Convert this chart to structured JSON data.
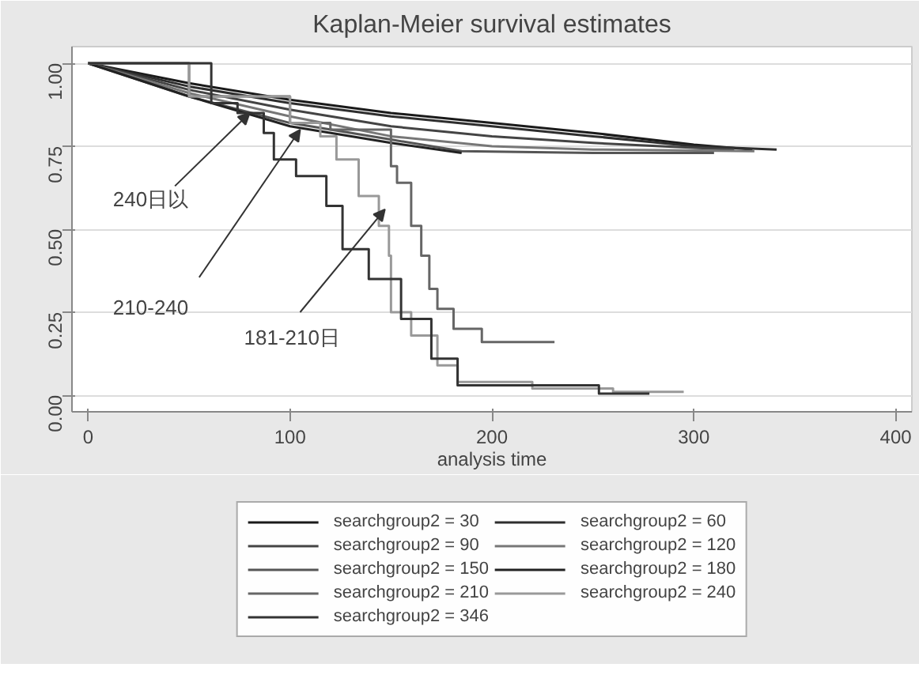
{
  "chart_data": {
    "type": "step",
    "title": "Kaplan-Meier survival estimates",
    "xlabel": "analysis time",
    "xlim": [
      -8,
      408
    ],
    "xticks": [
      0,
      100,
      200,
      300,
      400
    ],
    "ylim": [
      -0.05,
      1.05
    ],
    "yticks": [
      {
        "value": 0,
        "label": "0.00"
      },
      {
        "value": 0.25,
        "label": "0.25"
      },
      {
        "value": 0.5,
        "label": "0.50"
      },
      {
        "value": 0.75,
        "label": "0.75"
      },
      {
        "value": 1,
        "label": "1.00"
      }
    ],
    "grid": "y",
    "legend": "bottom",
    "line_style": "solid",
    "marker": "none",
    "annotations": [
      {
        "text": "240日以",
        "x": 80,
        "y": 0.85
      },
      {
        "text": "210-240",
        "x": 105,
        "y": 0.8
      },
      {
        "text": "181-210日",
        "x": 147,
        "y": 0.56
      }
    ],
    "series": [
      {
        "name": "searchgroup2 = 30",
        "type": "line",
        "color": "#1a1a1a",
        "x": [
          0,
          50,
          100,
          150,
          200,
          250,
          300,
          329
        ],
        "values": [
          1,
          0.94,
          0.89,
          0.85,
          0.82,
          0.79,
          0.755,
          0.74
        ]
      },
      {
        "name": "searchgroup2 = 60",
        "type": "line",
        "color": "#2e2e2e",
        "x": [
          0,
          50,
          100,
          150,
          200,
          250,
          300,
          341
        ],
        "values": [
          1,
          0.93,
          0.88,
          0.84,
          0.81,
          0.78,
          0.75,
          0.74
        ]
      },
      {
        "name": "searchgroup2 = 90",
        "type": "line",
        "color": "#444444",
        "x": [
          0,
          50,
          100,
          150,
          200,
          250,
          300,
          320
        ],
        "values": [
          1,
          0.92,
          0.86,
          0.81,
          0.78,
          0.76,
          0.745,
          0.74
        ]
      },
      {
        "name": "searchgroup2 = 120",
        "type": "line",
        "color": "#777777",
        "x": [
          0,
          50,
          100,
          150,
          200,
          250,
          330
        ],
        "values": [
          1,
          0.91,
          0.84,
          0.78,
          0.75,
          0.74,
          0.735
        ]
      },
      {
        "name": "searchgroup2 = 150",
        "type": "line",
        "color": "#555555",
        "x": [
          0,
          50,
          100,
          150,
          185,
          250,
          310
        ],
        "values": [
          1,
          0.9,
          0.82,
          0.77,
          0.735,
          0.73,
          0.73
        ]
      },
      {
        "name": "searchgroup2 = 180",
        "type": "line",
        "color": "#222222",
        "x": [
          0,
          50,
          100,
          150,
          185
        ],
        "values": [
          1,
          0.9,
          0.81,
          0.76,
          0.73
        ]
      },
      {
        "name": "searchgroup2 = 210",
        "color": "#666666",
        "x": [
          0,
          50,
          100,
          120,
          150,
          153,
          160,
          165,
          169,
          173,
          181,
          186,
          195,
          231
        ],
        "values": [
          1,
          0.9,
          0.82,
          0.8,
          0.69,
          0.64,
          0.51,
          0.42,
          0.32,
          0.26,
          0.2,
          0.2,
          0.16,
          0.16
        ]
      },
      {
        "name": "searchgroup2 = 240",
        "color": "#999999",
        "x": [
          0,
          50,
          100,
          115,
          123,
          134,
          144,
          149,
          150,
          160,
          173,
          183,
          220,
          260,
          295
        ],
        "values": [
          1,
          0.9,
          0.82,
          0.78,
          0.71,
          0.6,
          0.51,
          0.42,
          0.25,
          0.18,
          0.09,
          0.04,
          0.02,
          0.01,
          0.01
        ]
      },
      {
        "name": "searchgroup2 = 346",
        "color": "#333333",
        "x": [
          0,
          61,
          74,
          87,
          92,
          103,
          118,
          126,
          139,
          155,
          170,
          183,
          201,
          253,
          278
        ],
        "values": [
          1,
          0.88,
          0.85,
          0.79,
          0.71,
          0.66,
          0.57,
          0.44,
          0.35,
          0.23,
          0.11,
          0.03,
          0.03,
          0.005,
          0.005
        ]
      }
    ]
  }
}
